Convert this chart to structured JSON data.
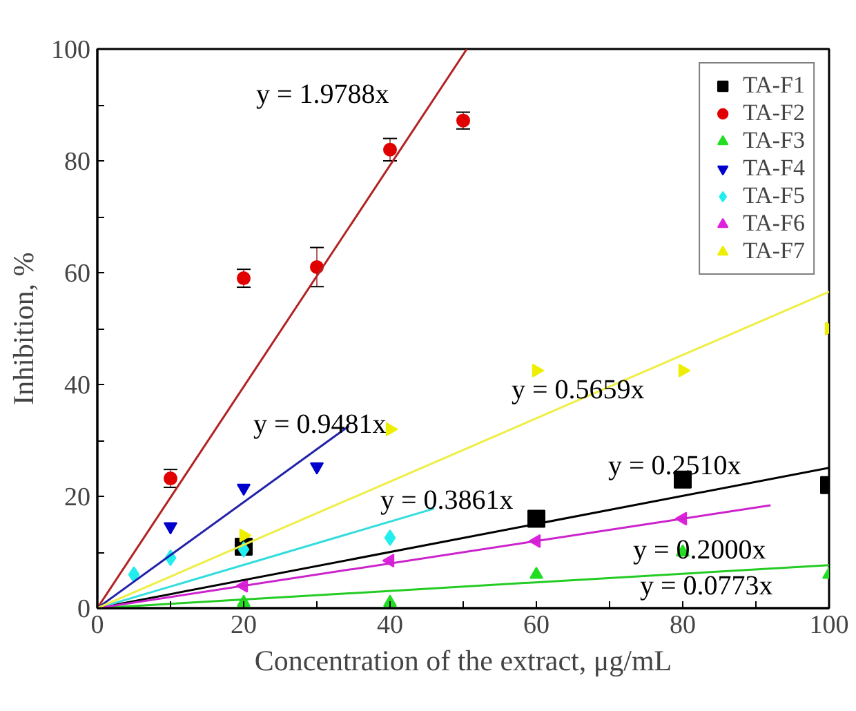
{
  "chart_data": {
    "type": "scatter",
    "xlabel": "Concentration of the extract, μg/mL",
    "ylabel": "Inhibition, %",
    "xlim": [
      0,
      100
    ],
    "ylim": [
      0,
      100
    ],
    "xticks": [
      0,
      {
        "value": 10,
        "label": null
      },
      20,
      {
        "value": 30,
        "label": null
      },
      40,
      {
        "value": 50,
        "label": null
      },
      60,
      {
        "value": 70,
        "label": null
      },
      80,
      {
        "value": 90,
        "label": null
      },
      100
    ],
    "yticks": [
      0,
      {
        "value": 10,
        "label": null
      },
      20,
      {
        "value": 30,
        "label": null
      },
      40,
      {
        "value": 50,
        "label": null
      },
      60,
      {
        "value": 70,
        "label": null
      },
      80,
      {
        "value": 90,
        "label": null
      },
      100
    ],
    "grid": false,
    "legend": "top right",
    "series": [
      {
        "name": "TA-F1",
        "color": "#000000",
        "marker": "square",
        "x": [
          20,
          60,
          80,
          100
        ],
        "values": [
          11,
          16,
          23,
          22
        ]
      },
      {
        "name": "TA-F2",
        "color": "#e00000",
        "marker": "circle",
        "x": [
          10,
          20,
          30,
          40,
          50
        ],
        "values": [
          23.2,
          59,
          61,
          82,
          87.2
        ],
        "errors": [
          1.6,
          1.6,
          3.5,
          2,
          1.5
        ]
      },
      {
        "name": "TA-F3",
        "color": "#22dd22",
        "marker": "triangle",
        "x": [
          20,
          40,
          60,
          80,
          100
        ],
        "values": [
          1,
          1,
          6,
          10,
          6
        ]
      },
      {
        "name": "TA-F4",
        "color": "#0000cc",
        "marker": "triangle_down",
        "x": [
          10,
          20,
          30
        ],
        "values": [
          14.6,
          21.5,
          25.3
        ]
      },
      {
        "name": "TA-F5",
        "color": "#22eeee",
        "marker": "diamond",
        "x": [
          5,
          10,
          20,
          40
        ],
        "values": [
          6,
          9,
          10.5,
          12.6
        ]
      },
      {
        "name": "TA-F6",
        "color": "#dd22dd",
        "marker": "triangle_left",
        "x": [
          20,
          40,
          60,
          80
        ],
        "values": [
          4,
          8.5,
          12,
          16
        ]
      },
      {
        "name": "TA-F7",
        "color": "#eeee00",
        "marker": "triangle_right",
        "x": [
          20,
          40,
          60,
          80,
          100
        ],
        "values": [
          13,
          32,
          42.5,
          42.5,
          50
        ]
      },
      {
        "type": "line",
        "color": "#000000",
        "x": [
          0,
          100
        ],
        "values": [
          0,
          25.1
        ]
      },
      {
        "type": "line",
        "color": "#b22222",
        "x": [
          0,
          50.5
        ],
        "values": [
          0,
          100
        ]
      },
      {
        "type": "line",
        "color": "#22cc22",
        "x": [
          0,
          100
        ],
        "values": [
          0,
          7.7
        ]
      },
      {
        "type": "line",
        "color": "#2222aa",
        "x": [
          0,
          34.4
        ],
        "values": [
          0,
          32.6
        ]
      },
      {
        "type": "line",
        "color": "#33dddd",
        "x": [
          0,
          46
        ],
        "values": [
          0,
          17.8
        ]
      },
      {
        "type": "line",
        "color": "#cc22cc",
        "x": [
          0,
          92
        ],
        "values": [
          0,
          18.4
        ]
      },
      {
        "type": "line",
        "color": "#eeee44",
        "x": [
          0,
          100
        ],
        "values": [
          0,
          56.6
        ]
      }
    ],
    "annotations": [
      "y = 1.9788x",
      "y = 0.9481x",
      "y = 0.5659x",
      "y = 0.3861x",
      "y = 0.2510x",
      "y = 0.2000x",
      "y = 0.0773x"
    ]
  }
}
